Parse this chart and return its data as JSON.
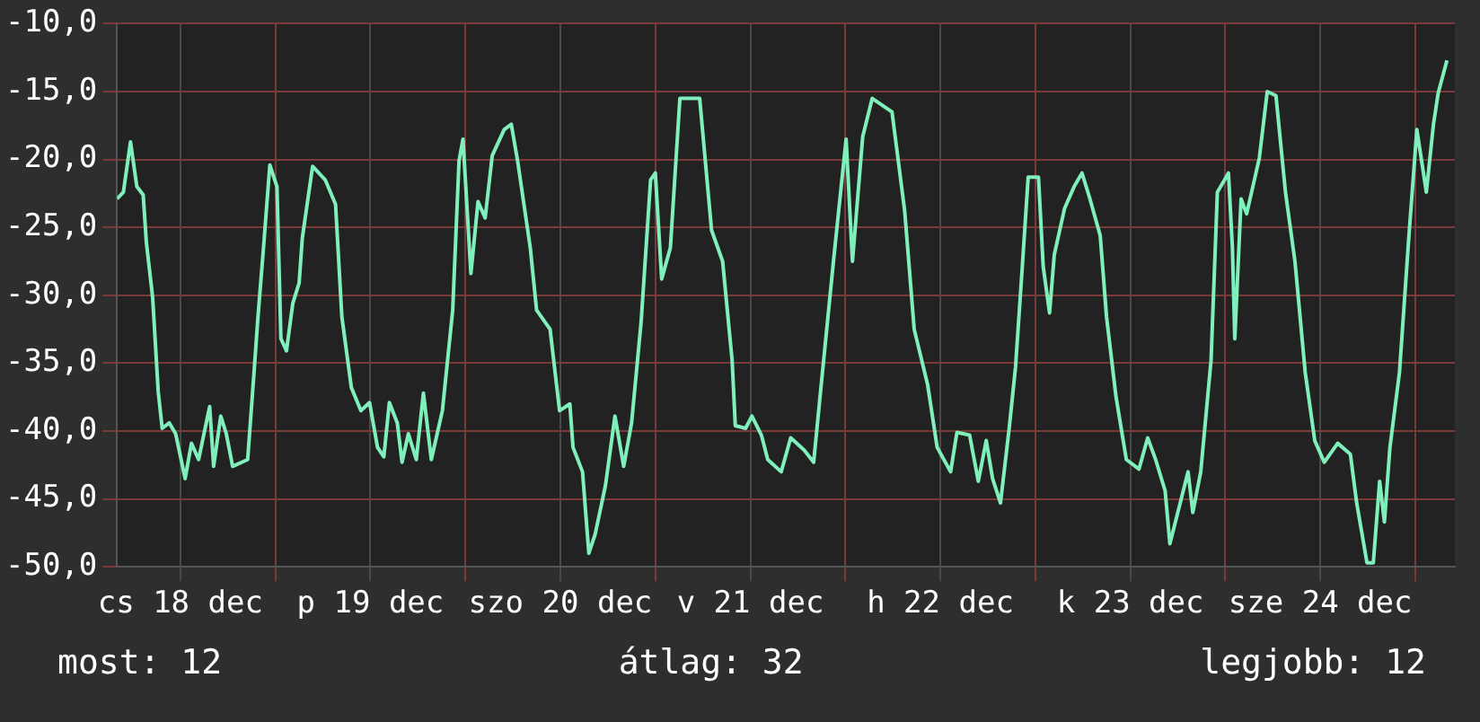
{
  "chart_data": {
    "type": "line",
    "x": [
      "--12-18T04:00",
      "--12-18T04:48",
      "--12-18T05:42",
      "--12-18T06:30",
      "--12-18T07:18",
      "--12-18T07:42",
      "--12-18T08:30",
      "--12-18T09:12",
      "--12-18T09:42",
      "--12-18T10:36",
      "--12-18T11:24",
      "--12-18T12:36",
      "--12-18T13:24",
      "--12-18T14:18",
      "--12-18T15:42",
      "--12-18T16:12",
      "--12-18T17:06",
      "--12-18T17:48",
      "--12-18T18:36",
      "--12-18T20:30",
      "--12-18T21:18",
      "--12-18T21:48",
      "--12-18T22:30",
      "--12-18T23:18",
      "--12-19T00:12",
      "--12-19T00:42",
      "--12-19T01:24",
      "--12-19T02:12",
      "--12-19T03:00",
      "--12-19T03:24",
      "--12-19T04:42",
      "--12-19T06:18",
      "--12-19T07:36",
      "--12-19T08:24",
      "--12-19T09:36",
      "--12-19T10:48",
      "--12-19T11:54",
      "--12-19T12:54",
      "--12-19T13:42",
      "--12-19T14:24",
      "--12-19T15:24",
      "--12-19T16:00",
      "--12-19T16:48",
      "--12-19T17:48",
      "--12-19T18:42",
      "--12-19T19:42",
      "--12-19T21:06",
      "--12-19T22:24",
      "--12-19T23:12",
      "--12-19T23:42",
      "--12-20T00:42",
      "--12-20T01:36",
      "--12-20T02:30",
      "--12-20T03:24",
      "--12-20T04:54",
      "--12-20T05:48",
      "--12-20T06:36",
      "--12-20T08:12",
      "--12-20T09:00",
      "--12-20T10:42",
      "--12-20T11:54",
      "--12-20T13:12",
      "--12-20T13:36",
      "--12-20T14:48",
      "--12-20T15:36",
      "--12-20T16:24",
      "--12-20T17:42",
      "--12-20T18:54",
      "--12-20T20:00",
      "--12-20T21:00",
      "--12-20T22:12",
      "--12-20T23:24",
      "--12-21T00:00",
      "--12-21T00:48",
      "--12-21T01:54",
      "--12-21T03:06",
      "--12-21T05:36",
      "--12-21T07:06",
      "--12-21T08:30",
      "--12-21T09:42",
      "--12-21T10:06",
      "--12-21T11:24",
      "--12-21T12:12",
      "--12-21T13:24",
      "--12-21T14:12",
      "--12-21T15:54",
      "--12-21T17:06",
      "--12-21T18:48",
      "--12-21T20:00",
      "--12-21T20:48",
      "--12-21T22:30",
      "--12-22T00:06",
      "--12-22T00:54",
      "--12-22T02:12",
      "--12-22T03:24",
      "--12-22T05:54",
      "--12-22T07:30",
      "--12-22T08:42",
      "--12-22T10:24",
      "--12-22T11:36",
      "--12-22T13:18",
      "--12-22T14:06",
      "--12-22T15:42",
      "--12-22T16:48",
      "--12-22T17:48",
      "--12-22T18:36",
      "--12-22T19:36",
      "--12-22T20:42",
      "--12-22T21:30",
      "--12-22T22:18",
      "--12-22T23:06",
      "--12-23T00:24",
      "--12-23T01:00",
      "--12-23T01:48",
      "--12-23T02:24",
      "--12-23T03:42",
      "--12-23T04:54",
      "--12-23T05:54",
      "--12-23T06:54",
      "--12-23T08:12",
      "--12-23T09:00",
      "--12-23T10:12",
      "--12-23T11:30",
      "--12-23T13:06",
      "--12-23T14:12",
      "--12-23T15:12",
      "--12-23T16:24",
      "--12-23T17:00",
      "--12-23T18:00",
      "--12-23T19:18",
      "--12-23T19:54",
      "--12-23T20:54",
      "--12-23T22:12",
      "--12-23T23:00",
      "--12-24T00:24",
      "--12-24T00:54",
      "--12-24T01:12",
      "--12-24T02:00",
      "--12-24T02:42",
      "--12-24T04:18",
      "--12-24T05:18",
      "--12-24T06:24",
      "--12-24T07:36",
      "--12-24T08:48",
      "--12-24T10:06",
      "--12-24T11:18",
      "--12-24T12:30",
      "--12-24T14:12",
      "--12-24T15:48",
      "--12-24T16:36",
      "--12-24T17:54",
      "--12-24T18:42",
      "--12-24T19:30",
      "--12-24T20:06",
      "--12-24T20:48",
      "--12-24T22:00",
      "--12-24T23:12",
      "--12-25T00:12",
      "--12-25T01:24",
      "--12-25T02:18",
      "--12-25T02:54",
      "--12-25T04:00"
    ],
    "series": [
      {
        "color": "#7ff0bc",
        "values": [
          -22.9,
          -22.4,
          -18.7,
          -22,
          -22.6,
          -26.1,
          -30.2,
          -37.1,
          -39.8,
          -39.4,
          -40.2,
          -43.5,
          -40.9,
          -42.1,
          -38.2,
          -42.6,
          -38.9,
          -40.2,
          -42.6,
          -42.1,
          -35.7,
          -31.6,
          -26.5,
          -20.4,
          -22,
          -33.2,
          -34.1,
          -30.6,
          -29.1,
          -25.8,
          -20.5,
          -21.5,
          -23.3,
          -31.6,
          -36.8,
          -38.5,
          -37.9,
          -41.2,
          -41.9,
          -37.9,
          -39.4,
          -42.3,
          -40.2,
          -42.1,
          -37.2,
          -42.1,
          -38.5,
          -31.1,
          -20.1,
          -18.5,
          -28.4,
          -23.1,
          -24.3,
          -19.7,
          -17.8,
          -17.4,
          -20.1,
          -26.5,
          -31.1,
          -32.5,
          -38.5,
          -38,
          -41.2,
          -43,
          -49,
          -47.6,
          -44,
          -38.9,
          -42.6,
          -39.4,
          -32,
          -21.5,
          -21,
          -28.8,
          -26.5,
          -15.5,
          -15.5,
          -25.2,
          -27.5,
          -34.8,
          -39.6,
          -39.8,
          -38.9,
          -40.3,
          -42.1,
          -43,
          -40.5,
          -41.4,
          -42.3,
          -37.5,
          -27.5,
          -18.5,
          -27.5,
          -18.3,
          -15.5,
          -16.5,
          -23.8,
          -32.5,
          -36.6,
          -41.2,
          -43,
          -40.1,
          -40.3,
          -43.7,
          -40.7,
          -43.5,
          -45.3,
          -39.8,
          -35.3,
          -28.4,
          -21.3,
          -21.3,
          -27.9,
          -31.3,
          -27,
          -23.6,
          -22,
          -21,
          -22.9,
          -25.6,
          -31.6,
          -37.5,
          -42.1,
          -42.8,
          -40.5,
          -42.1,
          -44.4,
          -48.3,
          -46,
          -43,
          -46,
          -43,
          -34.8,
          -22.4,
          -21,
          -26.5,
          -33.2,
          -22.9,
          -24,
          -19.9,
          -15,
          -15.3,
          -22.4,
          -27.5,
          -35.7,
          -40.7,
          -42.3,
          -40.9,
          -41.7,
          -45.3,
          -49.7,
          -49.7,
          -43.7,
          -46.7,
          -41.2,
          -35.7,
          -25.6,
          -17.8,
          -22.4,
          -17.4,
          -15.1,
          -12.7
        ]
      }
    ],
    "xlim": [
      "--12-18T04:00",
      "--12-25T05:00"
    ],
    "xticks": [
      {
        "value": "--12-18T12:00",
        "label": "cs 18 dec"
      },
      {
        "value": "--12-19",
        "label": null
      },
      {
        "value": "--12-19T12:00",
        "label": "p 19 dec"
      },
      {
        "value": "--12-20",
        "label": null
      },
      {
        "value": "--12-20T12:00",
        "label": "szo 20 dec"
      },
      {
        "value": "--12-21",
        "label": null
      },
      {
        "value": "--12-21T12:00",
        "label": "v 21 dec"
      },
      {
        "value": "--12-22",
        "label": null
      },
      {
        "value": "--12-22T12:00",
        "label": "h 22 dec"
      },
      {
        "value": "--12-23",
        "label": null
      },
      {
        "value": "--12-23T12:00",
        "label": "k 23 dec"
      },
      {
        "value": "--12-24",
        "label": null
      },
      {
        "value": "--12-24T12:00",
        "label": "sze 24 dec"
      },
      {
        "value": "--12-25",
        "label": null
      }
    ],
    "ylim": [
      -50,
      -10
    ],
    "yticks": [
      {
        "value": -50,
        "label": "-50,0"
      },
      {
        "value": -45,
        "label": "-45,0"
      },
      {
        "value": -40,
        "label": "-40,0"
      },
      {
        "value": -35,
        "label": "-35,0"
      },
      {
        "value": -30,
        "label": "-30,0"
      },
      {
        "value": -25,
        "label": "-25,0"
      },
      {
        "value": -20,
        "label": "-20,0"
      },
      {
        "value": -15,
        "label": "-15,0"
      },
      {
        "value": -10,
        "label": "-10,0"
      }
    ],
    "grid": true,
    "legend": false,
    "marker": "none",
    "line_style": "solid",
    "annotations": [
      "most: 12",
      "átlag: 32",
      "legjobb: 12"
    ]
  }
}
